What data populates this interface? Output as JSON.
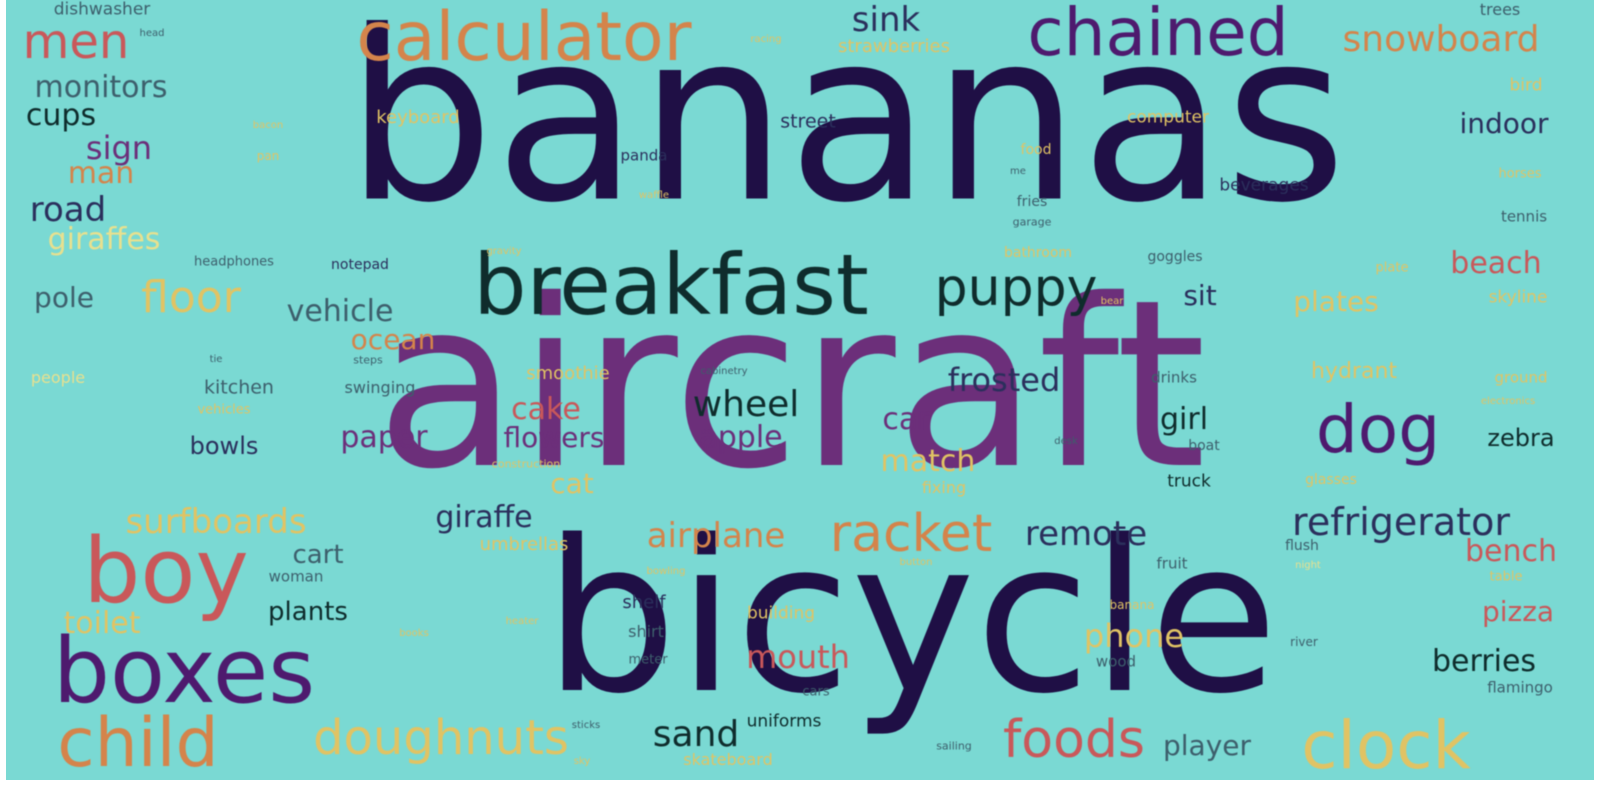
{
  "background": "#7ad9d3",
  "palette": {
    "d": "#1f0f45",
    "p": "#4e1a6e",
    "m": "#6c2f7a",
    "i": "#2b2f5c",
    "r": "#c9585a",
    "o": "#d4844b",
    "y": "#e0c364",
    "c": "#e8e08e",
    "k": "#0f2c2c",
    "g": "#3d5f6c"
  },
  "words": [
    {
      "text": "bananas",
      "color": "d"
    },
    {
      "text": "aircraft",
      "color": "m"
    },
    {
      "text": "bicycle",
      "color": "d"
    },
    {
      "text": "breakfast",
      "color": "k"
    },
    {
      "text": "calculator",
      "color": "o"
    },
    {
      "text": "chained",
      "color": "p"
    },
    {
      "text": "boy",
      "color": "r"
    },
    {
      "text": "boxes",
      "color": "p"
    },
    {
      "text": "child",
      "color": "o"
    },
    {
      "text": "clock",
      "color": "y"
    },
    {
      "text": "dog",
      "color": "p"
    },
    {
      "text": "men",
      "color": "r"
    },
    {
      "text": "racket",
      "color": "o"
    },
    {
      "text": "foods",
      "color": "r"
    },
    {
      "text": "puppy",
      "color": "k"
    },
    {
      "text": "doughnuts",
      "color": "y"
    },
    {
      "text": "refrigerator",
      "color": "i"
    },
    {
      "text": "snowboard",
      "color": "o"
    },
    {
      "text": "sink",
      "color": "i"
    },
    {
      "text": "floor",
      "color": "y"
    },
    {
      "text": "surfboards",
      "color": "y"
    },
    {
      "text": "road",
      "color": "i"
    },
    {
      "text": "remote",
      "color": "i"
    },
    {
      "text": "airplane",
      "color": "o"
    },
    {
      "text": "wheel",
      "color": "k"
    },
    {
      "text": "sand",
      "color": "k"
    },
    {
      "text": "frosted",
      "color": "i"
    },
    {
      "text": "mouth",
      "color": "r"
    },
    {
      "text": "phone",
      "color": "y"
    },
    {
      "text": "monitors",
      "color": "g"
    },
    {
      "text": "berries",
      "color": "k"
    },
    {
      "text": "cups",
      "color": "k"
    },
    {
      "text": "sign",
      "color": "m"
    },
    {
      "text": "man",
      "color": "o"
    },
    {
      "text": "beach",
      "color": "r"
    },
    {
      "text": "bench",
      "color": "r"
    },
    {
      "text": "giraffes",
      "color": "c"
    },
    {
      "text": "vehicle",
      "color": "g"
    },
    {
      "text": "toilet",
      "color": "y"
    },
    {
      "text": "pizza",
      "color": "r"
    },
    {
      "text": "paper",
      "color": "m"
    },
    {
      "text": "apple",
      "color": "m"
    },
    {
      "text": "cake",
      "color": "r"
    },
    {
      "text": "girl",
      "color": "k"
    },
    {
      "text": "car",
      "color": "m"
    },
    {
      "text": "giraffe",
      "color": "i"
    },
    {
      "text": "match",
      "color": "y"
    },
    {
      "text": "player",
      "color": "g"
    },
    {
      "text": "flowers",
      "color": "m"
    },
    {
      "text": "plates",
      "color": "y"
    },
    {
      "text": "pole",
      "color": "g"
    },
    {
      "text": "cat",
      "color": "y"
    },
    {
      "text": "ocean",
      "color": "o"
    },
    {
      "text": "sit",
      "color": "i"
    },
    {
      "text": "indoor",
      "color": "i"
    },
    {
      "text": "zebra",
      "color": "k"
    },
    {
      "text": "plants",
      "color": "k"
    },
    {
      "text": "cart",
      "color": "g"
    },
    {
      "text": "bowls",
      "color": "i"
    },
    {
      "text": "hydrant",
      "color": "y"
    },
    {
      "text": "dishwasher",
      "color": "g"
    },
    {
      "text": "strawberries",
      "color": "y"
    },
    {
      "text": "street",
      "color": "i"
    },
    {
      "text": "keyboard",
      "color": "y"
    },
    {
      "text": "computer",
      "color": "y"
    },
    {
      "text": "trees",
      "color": "g"
    },
    {
      "text": "bird",
      "color": "y"
    },
    {
      "text": "beverages",
      "color": "i"
    },
    {
      "text": "tennis",
      "color": "g"
    },
    {
      "text": "skyline",
      "color": "y"
    },
    {
      "text": "ground",
      "color": "y"
    },
    {
      "text": "kitchen",
      "color": "g"
    },
    {
      "text": "swinging",
      "color": "g"
    },
    {
      "text": "smoothie",
      "color": "y"
    },
    {
      "text": "drinks",
      "color": "g"
    },
    {
      "text": "shelf",
      "color": "i"
    },
    {
      "text": "shirt",
      "color": "g"
    },
    {
      "text": "umbrellas",
      "color": "y"
    },
    {
      "text": "building",
      "color": "y"
    },
    {
      "text": "flamingo",
      "color": "g"
    },
    {
      "text": "fixing",
      "color": "y"
    },
    {
      "text": "truck",
      "color": "k"
    },
    {
      "text": "uniforms",
      "color": "k"
    },
    {
      "text": "skateboard",
      "color": "y"
    },
    {
      "text": "woman",
      "color": "g"
    },
    {
      "text": "people",
      "color": "c"
    },
    {
      "text": "vehicles",
      "color": "y"
    },
    {
      "text": "headphones",
      "color": "g"
    },
    {
      "text": "notepad",
      "color": "i"
    },
    {
      "text": "bathroom",
      "color": "y"
    },
    {
      "text": "goggles",
      "color": "g"
    },
    {
      "text": "fries",
      "color": "g"
    },
    {
      "text": "food",
      "color": "y"
    },
    {
      "text": "panda",
      "color": "i"
    },
    {
      "text": "wood",
      "color": "g"
    },
    {
      "text": "fruit",
      "color": "g"
    },
    {
      "text": "flush",
      "color": "g"
    },
    {
      "text": "boat",
      "color": "g"
    },
    {
      "text": "glasses",
      "color": "y"
    },
    {
      "text": "table",
      "color": "y"
    },
    {
      "text": "plate",
      "color": "y"
    },
    {
      "text": "horses",
      "color": "y"
    },
    {
      "text": "meter",
      "color": "g"
    },
    {
      "text": "cars",
      "color": "g"
    },
    {
      "text": "sailing",
      "color": "g"
    },
    {
      "text": "banana",
      "color": "y"
    },
    {
      "text": "river",
      "color": "g"
    },
    {
      "text": "electronics",
      "color": "y"
    },
    {
      "text": "garage",
      "color": "g"
    },
    {
      "text": "cabinetry",
      "color": "g"
    },
    {
      "text": "steps",
      "color": "g"
    },
    {
      "text": "desk",
      "color": "g"
    },
    {
      "text": "bowling",
      "color": "y"
    },
    {
      "text": "night",
      "color": "c"
    },
    {
      "text": "construction",
      "color": "y"
    },
    {
      "text": "sky",
      "color": "y"
    },
    {
      "text": "heater",
      "color": "y"
    },
    {
      "text": "books",
      "color": "y"
    },
    {
      "text": "sticks",
      "color": "g"
    },
    {
      "text": "button",
      "color": "y"
    },
    {
      "text": "gravity",
      "color": "y"
    },
    {
      "text": "pan",
      "color": "y"
    },
    {
      "text": "tie",
      "color": "g"
    },
    {
      "text": "head",
      "color": "g"
    },
    {
      "text": "bacon",
      "color": "y"
    },
    {
      "text": "waffle",
      "color": "y"
    },
    {
      "text": "bear",
      "color": "y"
    },
    {
      "text": "racing",
      "color": "y"
    },
    {
      "text": "me",
      "color": "g"
    }
  ]
}
